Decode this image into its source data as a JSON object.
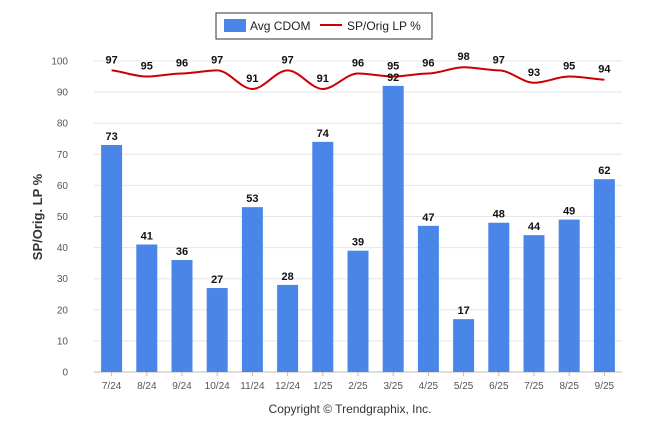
{
  "chart_data": {
    "type": "bar",
    "categories": [
      "7/24",
      "8/24",
      "9/24",
      "10/24",
      "11/24",
      "12/24",
      "1/25",
      "2/25",
      "3/25",
      "4/25",
      "5/25",
      "6/25",
      "7/25",
      "8/25",
      "9/25"
    ],
    "series": [
      {
        "name": "Avg CDOM",
        "type": "bar",
        "color": "#4a86e8",
        "values": [
          73,
          41,
          36,
          27,
          53,
          28,
          74,
          39,
          92,
          47,
          17,
          48,
          44,
          49,
          62
        ]
      },
      {
        "name": "SP/Orig LP %",
        "type": "line",
        "color": "#cc0000",
        "values": [
          97,
          95,
          96,
          97,
          91,
          97,
          91,
          96,
          95,
          96,
          98,
          97,
          93,
          95,
          94
        ]
      }
    ],
    "ylabel": "SP/Orig. LP %",
    "xlabel": "",
    "ylim": [
      0,
      100
    ],
    "yticks": [
      0,
      10,
      20,
      30,
      40,
      50,
      60,
      70,
      80,
      90,
      100
    ],
    "grid": true,
    "legend": "top-center"
  },
  "footer": "Copyright © Trendgraphix, Inc."
}
